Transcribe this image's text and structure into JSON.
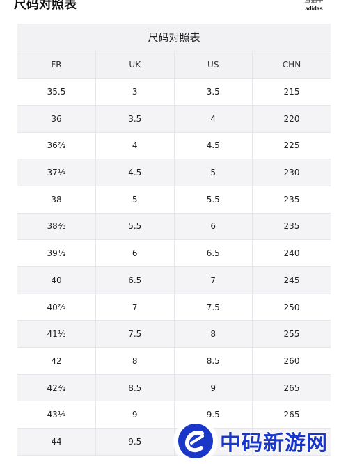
{
  "page": {
    "title": "尺码对照表"
  },
  "brand": {
    "top_text": "直播中",
    "name": "adidas"
  },
  "table": {
    "caption": "尺码对照表",
    "headers": [
      "FR",
      "UK",
      "US",
      "CHN"
    ],
    "rows": [
      [
        "35.5",
        "3",
        "3.5",
        "215"
      ],
      [
        "36",
        "3.5",
        "4",
        "220"
      ],
      [
        "36⅔",
        "4",
        "4.5",
        "225"
      ],
      [
        "37⅓",
        "4.5",
        "5",
        "230"
      ],
      [
        "38",
        "5",
        "5.5",
        "235"
      ],
      [
        "38⅔",
        "5.5",
        "6",
        "235"
      ],
      [
        "39⅓",
        "6",
        "6.5",
        "240"
      ],
      [
        "40",
        "6.5",
        "7",
        "245"
      ],
      [
        "40⅔",
        "7",
        "7.5",
        "250"
      ],
      [
        "41⅓",
        "7.5",
        "8",
        "255"
      ],
      [
        "42",
        "8",
        "8.5",
        "260"
      ],
      [
        "42⅔",
        "8.5",
        "9",
        "265"
      ],
      [
        "43⅓",
        "9",
        "9.5",
        "265"
      ],
      [
        "44",
        "9.5",
        "",
        ""
      ]
    ]
  },
  "watermark": {
    "text": "中码新游网",
    "color": "#1a37c8"
  }
}
